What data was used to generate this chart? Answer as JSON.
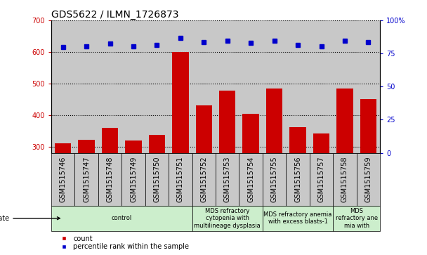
{
  "title": "GDS5622 / ILMN_1726873",
  "samples": [
    "GSM1515746",
    "GSM1515747",
    "GSM1515748",
    "GSM1515749",
    "GSM1515750",
    "GSM1515751",
    "GSM1515752",
    "GSM1515753",
    "GSM1515754",
    "GSM1515755",
    "GSM1515756",
    "GSM1515757",
    "GSM1515758",
    "GSM1515759"
  ],
  "counts": [
    310,
    322,
    360,
    320,
    337,
    600,
    430,
    477,
    403,
    483,
    362,
    342,
    485,
    450
  ],
  "percentiles": [
    80,
    80.5,
    82.5,
    80.5,
    81.5,
    87,
    83.5,
    84.5,
    83,
    84.5,
    81.5,
    80.5,
    84.5,
    83.5
  ],
  "disease_groups": [
    {
      "label": "control",
      "start": 0,
      "end": 6,
      "color": "#cceecc"
    },
    {
      "label": "MDS refractory\ncytopenia with\nmultilineage dysplasia",
      "start": 6,
      "end": 9,
      "color": "#cceecc"
    },
    {
      "label": "MDS refractory anemia\nwith excess blasts-1",
      "start": 9,
      "end": 12,
      "color": "#cceecc"
    },
    {
      "label": "MDS\nrefractory ane\nmia with",
      "start": 12,
      "end": 14,
      "color": "#cceecc"
    }
  ],
  "ylim_left": [
    280,
    700
  ],
  "ylim_right": [
    0,
    100
  ],
  "yticks_left": [
    300,
    400,
    500,
    600,
    700
  ],
  "yticks_right": [
    0,
    25,
    50,
    75,
    100
  ],
  "bar_color": "#cc0000",
  "dot_color": "#0000cc",
  "background_color": "#ffffff",
  "bar_bg_color": "#c8c8c8",
  "grid_color": "#000000",
  "title_fontsize": 10,
  "tick_fontsize": 7,
  "label_fontsize": 7
}
